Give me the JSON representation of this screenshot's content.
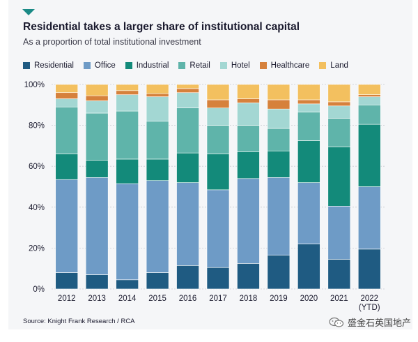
{
  "header": {
    "title": "Residential takes a larger share of institutional capital",
    "subtitle": "As a proportion of total institutional investment"
  },
  "footer": {
    "source": "Source: Knight Frank Research / RCA",
    "watermark": "盛金石英国地产",
    "watermark_icon": "wechat-icon"
  },
  "colors": {
    "background": "#f5f6f8",
    "accent": "#1a8a86"
  },
  "chart_data": {
    "type": "bar",
    "stacked": true,
    "title": "Residential takes a larger share of institutional capital",
    "subtitle": "As a proportion of total institutional investment",
    "xlabel": "",
    "ylabel": "",
    "ylim": [
      0,
      100
    ],
    "y_ticks": [
      "0%",
      "20%",
      "40%",
      "60%",
      "80%",
      "100%"
    ],
    "y_tick_values": [
      0,
      20,
      40,
      60,
      80,
      100
    ],
    "grid": true,
    "legend_position": "top",
    "categories": [
      "2012",
      "2013",
      "2014",
      "2015",
      "2016",
      "2017",
      "2018",
      "2019",
      "2020",
      "2021",
      "2022"
    ],
    "category_sublabels": [
      "",
      "",
      "",
      "",
      "",
      "",
      "",
      "",
      "",
      "",
      "(YTD)"
    ],
    "series": [
      {
        "name": "Residential",
        "color": "#1f5b82",
        "values": [
          8,
          7,
          4.5,
          8,
          11.5,
          10.5,
          12.5,
          16.5,
          22,
          14.5,
          19.5
        ]
      },
      {
        "name": "Office",
        "color": "#6e9bc6",
        "values": [
          45.5,
          47.5,
          47,
          45,
          40.5,
          38,
          41.5,
          38,
          30,
          26,
          30.5
        ]
      },
      {
        "name": "Industrial",
        "color": "#138a7a",
        "values": [
          12.5,
          8.5,
          12,
          10.5,
          14.5,
          17.5,
          13,
          13,
          20.5,
          29,
          30.5
        ]
      },
      {
        "name": "Retail",
        "color": "#5fb4aa",
        "values": [
          23,
          23,
          23.5,
          18.5,
          22,
          14,
          13,
          11,
          14,
          14,
          9.5
        ]
      },
      {
        "name": "Hotel",
        "color": "#a3d7d3",
        "values": [
          4,
          6,
          8,
          12,
          7.5,
          8.5,
          11,
          9.5,
          4,
          6,
          4
        ]
      },
      {
        "name": "Healthcare",
        "color": "#d6813c",
        "values": [
          3,
          2.5,
          2,
          1.5,
          2,
          4,
          2,
          4.5,
          2,
          2,
          1
        ]
      },
      {
        "name": "Land",
        "color": "#f3c05f",
        "values": [
          4,
          5.5,
          3,
          4.5,
          2,
          7.5,
          7,
          7.5,
          7.5,
          8.5,
          5
        ]
      }
    ]
  }
}
